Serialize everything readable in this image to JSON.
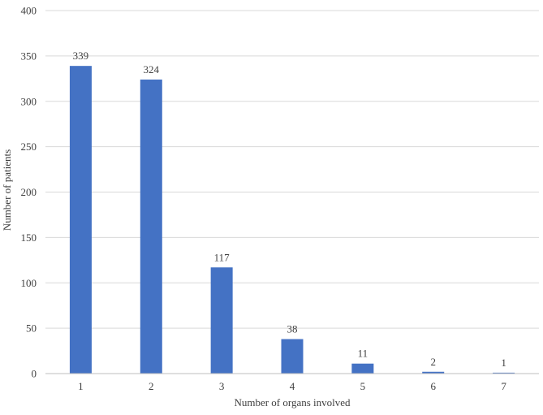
{
  "chart_data": {
    "type": "bar",
    "title": "",
    "xlabel": "Number of organs involved",
    "ylabel": "Number of patients",
    "categories": [
      "1",
      "2",
      "3",
      "4",
      "5",
      "6",
      "7"
    ],
    "values": [
      339,
      324,
      117,
      38,
      11,
      2,
      1
    ],
    "data_labels": [
      "339",
      "324",
      "117",
      "38",
      "11",
      "2",
      "1"
    ],
    "ylim": [
      0,
      400
    ],
    "yticks": [
      "0",
      "50",
      "100",
      "150",
      "200",
      "250",
      "300",
      "350",
      "400"
    ],
    "grid": "horizontal",
    "legend": "none",
    "bar_color": "#4472c4",
    "grid_color": "#d9d9d9",
    "axis_color": "#bfbfbf",
    "text_color": "#404040"
  }
}
